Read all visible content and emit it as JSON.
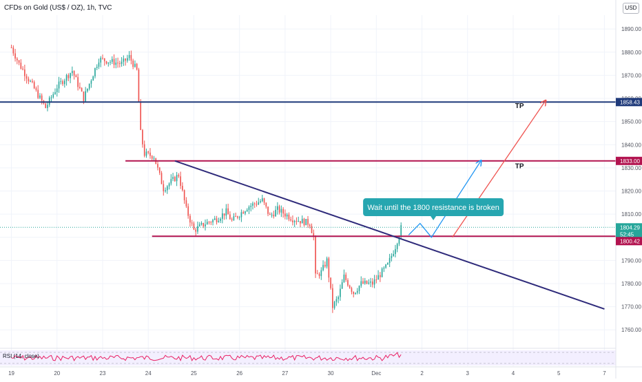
{
  "header": {
    "symbol_title": "CFDs on Gold (US$ / OZ), 1h, TVC",
    "currency": "USD"
  },
  "colors": {
    "up": "#26a69a",
    "down": "#ef5350",
    "navy": "#1f3a7a",
    "crimson": "#b2134f",
    "purple": "#2e2a7a",
    "blue_path": "#2196f3",
    "red_arrow": "#ef5350",
    "callout": "#26a6b0",
    "current": "#26a69a"
  },
  "chart_data": {
    "type": "candlestick",
    "x_tick_labels": [
      {
        "label": "19",
        "x": 0
      },
      {
        "label": "20",
        "x": 24
      },
      {
        "label": "23",
        "x": 48
      },
      {
        "label": "24",
        "x": 72
      },
      {
        "label": "25",
        "x": 96
      },
      {
        "label": "26",
        "x": 120
      },
      {
        "label": "27",
        "x": 144
      },
      {
        "label": "30",
        "x": 168
      },
      {
        "label": "Dec",
        "x": 192
      },
      {
        "label": "2",
        "x": 216
      },
      {
        "label": "3",
        "x": 240
      },
      {
        "label": "4",
        "x": 264
      },
      {
        "label": "5",
        "x": 288
      },
      {
        "label": "7",
        "x": 312
      }
    ],
    "x_range": [
      -6,
      318
    ],
    "y_ticks": [
      1760,
      1770,
      1780,
      1790,
      1800,
      1810,
      1820,
      1830,
      1840,
      1850,
      1860,
      1870,
      1880,
      1890
    ],
    "y_range": [
      1755,
      1896
    ],
    "anchors": [
      [
        0,
        1882
      ],
      [
        4,
        1875
      ],
      [
        10,
        1867
      ],
      [
        18,
        1856
      ],
      [
        24,
        1865
      ],
      [
        32,
        1872
      ],
      [
        38,
        1860
      ],
      [
        46,
        1877
      ],
      [
        52,
        1876
      ],
      [
        58,
        1875
      ],
      [
        62,
        1878
      ],
      [
        66,
        1872
      ],
      [
        68,
        1845
      ],
      [
        70,
        1836
      ],
      [
        75,
        1835
      ],
      [
        80,
        1821
      ],
      [
        88,
        1827
      ],
      [
        92,
        1812
      ],
      [
        96,
        1803
      ],
      [
        102,
        1806
      ],
      [
        108,
        1808
      ],
      [
        113,
        1811
      ],
      [
        116,
        1807
      ],
      [
        120,
        1810
      ],
      [
        124,
        1813
      ],
      [
        132,
        1816
      ],
      [
        136,
        1809
      ],
      [
        140,
        1812
      ],
      [
        148,
        1808
      ],
      [
        157,
        1806
      ],
      [
        159,
        1800
      ],
      [
        160,
        1783
      ],
      [
        163,
        1785
      ],
      [
        166,
        1790
      ],
      [
        169,
        1770
      ],
      [
        172,
        1774
      ],
      [
        175,
        1783
      ],
      [
        180,
        1776
      ],
      [
        184,
        1780
      ],
      [
        190,
        1780
      ],
      [
        198,
        1788
      ],
      [
        202,
        1796
      ],
      [
        205,
        1804
      ]
    ],
    "price_levels": [
      {
        "label": "1858.43",
        "value": 1858.43,
        "color": "#1f3a7a"
      },
      {
        "label": "1833.00",
        "value": 1833.0,
        "color": "#b2134f"
      },
      {
        "label": "1804.29",
        "value": 1804.29,
        "color": "#26a69a"
      },
      {
        "label": "52:45",
        "value": 1801.9,
        "color": "#26a69a"
      },
      {
        "label": "1800.42",
        "value": 1800.42,
        "color": "#b2134f"
      }
    ],
    "horizontal_lines": [
      {
        "value": 1858.43,
        "x_from": -6,
        "color": "#1f3a7a"
      },
      {
        "value": 1833.0,
        "x_from": 60,
        "color": "#b2134f"
      },
      {
        "value": 1800.42,
        "x_from": 74,
        "color": "#b2134f"
      }
    ],
    "trendline": {
      "from": [
        86,
        1833
      ],
      "to": [
        312,
        1769
      ],
      "color": "#2e2a7a"
    },
    "blue_path": [
      [
        209,
        1801
      ],
      [
        215,
        1806
      ],
      [
        221,
        1800
      ],
      [
        247,
        1833
      ]
    ],
    "red_arrow": {
      "from": [
        232,
        1800
      ],
      "to": [
        281,
        1859
      ]
    },
    "tp_labels": [
      {
        "text": "TP",
        "x": 265,
        "value": 1857
      },
      {
        "text": "TP",
        "x": 265,
        "value": 1831
      }
    ],
    "callout": {
      "text": "Wait until the 1800 resistance is broken",
      "x": 222,
      "value": 1813
    },
    "rsi": {
      "label": "RSI (14, close)"
    }
  }
}
